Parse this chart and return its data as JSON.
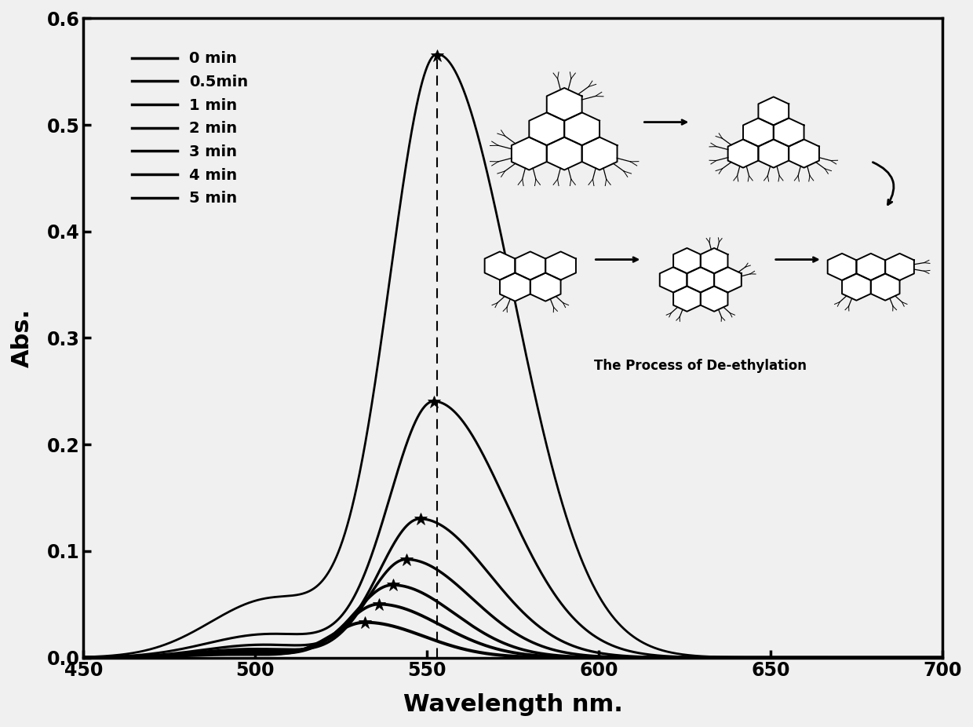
{
  "title": "",
  "xlabel": "Wavelength nm.",
  "ylabel": "Abs.",
  "xlim": [
    450,
    700
  ],
  "ylim": [
    0.0,
    0.6
  ],
  "yticks": [
    0.0,
    0.1,
    0.2,
    0.3,
    0.4,
    0.5,
    0.6
  ],
  "xticks": [
    450,
    500,
    550,
    600,
    650,
    700
  ],
  "series": [
    {
      "label": "0 min",
      "peak_wl": 553,
      "peak_abs": 0.565,
      "sigma_l": 14,
      "sigma_r": 22,
      "shoulder_amp": 0.055,
      "shoulder_wl": 505,
      "shoulder_sig": 18
    },
    {
      "label": "0.5min",
      "peak_wl": 552,
      "peak_abs": 0.24,
      "sigma_l": 13,
      "sigma_r": 21,
      "shoulder_amp": 0.022,
      "shoulder_wl": 504,
      "shoulder_sig": 18
    },
    {
      "label": "1 min",
      "peak_wl": 548,
      "peak_abs": 0.13,
      "sigma_l": 12,
      "sigma_r": 20,
      "shoulder_amp": 0.012,
      "shoulder_wl": 502,
      "shoulder_sig": 17
    },
    {
      "label": "2 min",
      "peak_wl": 544,
      "peak_abs": 0.092,
      "sigma_l": 11,
      "sigma_r": 19,
      "shoulder_amp": 0.008,
      "shoulder_wl": 500,
      "shoulder_sig": 17
    },
    {
      "label": "3 min",
      "peak_wl": 540,
      "peak_abs": 0.068,
      "sigma_l": 11,
      "sigma_r": 18,
      "shoulder_amp": 0.006,
      "shoulder_wl": 498,
      "shoulder_sig": 16
    },
    {
      "label": "4 min",
      "peak_wl": 536,
      "peak_abs": 0.05,
      "sigma_l": 10,
      "sigma_r": 18,
      "shoulder_amp": 0.004,
      "shoulder_wl": 496,
      "shoulder_sig": 16
    },
    {
      "label": "5 min",
      "peak_wl": 532,
      "peak_abs": 0.033,
      "sigma_l": 10,
      "sigma_r": 17,
      "shoulder_amp": 0.003,
      "shoulder_wl": 494,
      "shoulder_sig": 15
    }
  ],
  "dashed_line_wl": 553,
  "background_color": "#f0f0f0",
  "line_color": "#000000",
  "inset_text": "The Process of De-ethylation",
  "lw_all": 2.0
}
